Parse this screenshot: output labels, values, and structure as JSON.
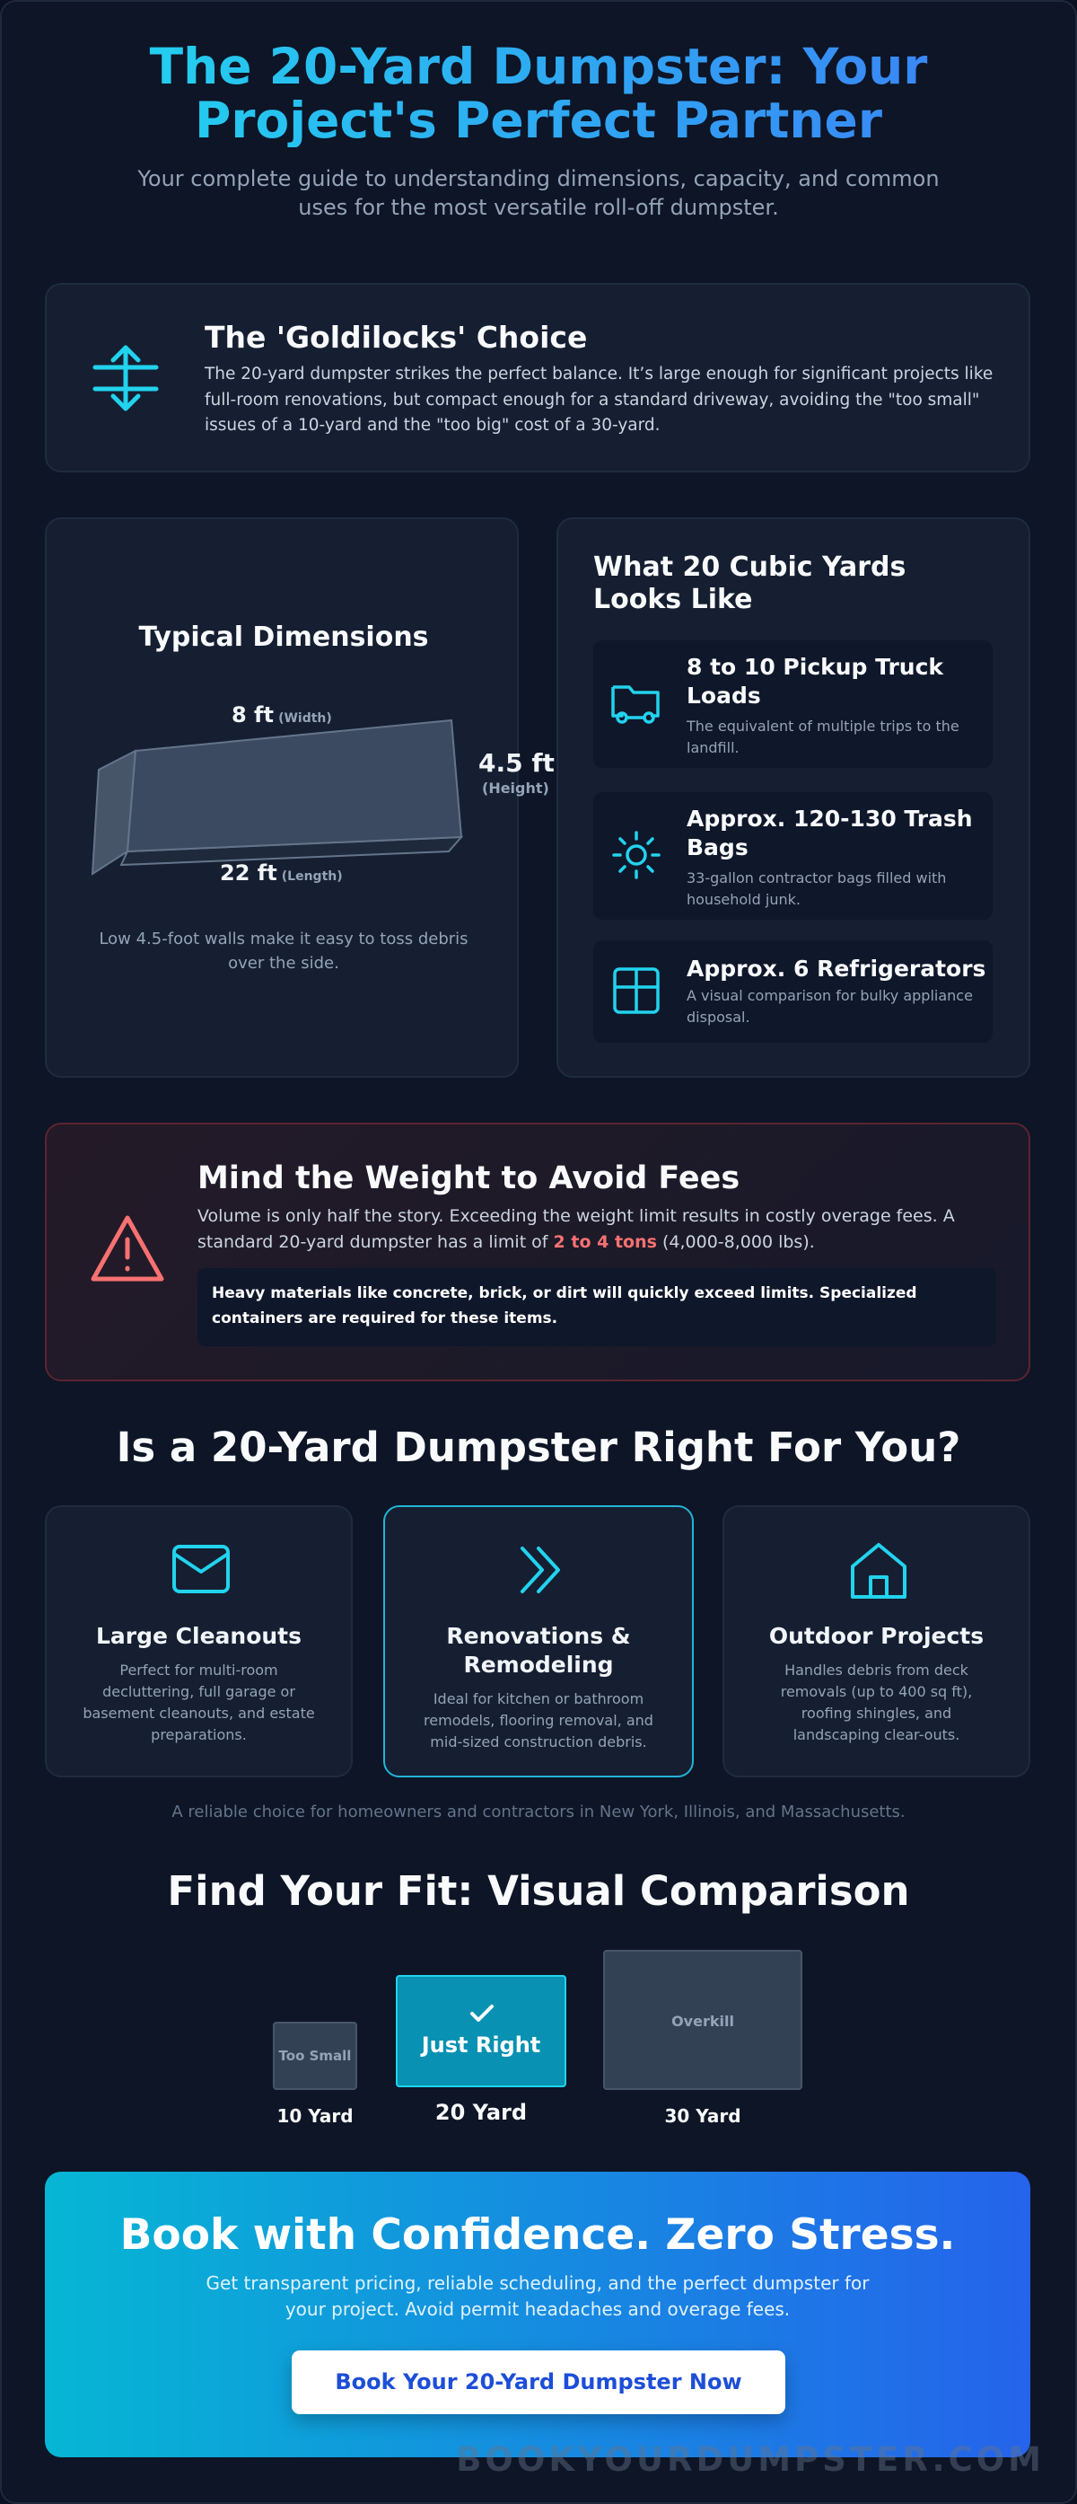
{
  "header": {
    "title": "The 20-Yard Dumpster: Your Project's Perfect Partner",
    "subtitle": "Your complete guide to understanding dimensions, capacity, and common uses for the most versatile roll-off dumpster."
  },
  "goldilocks": {
    "title": "The 'Goldilocks' Choice",
    "text": "The 20-yard dumpster strikes the perfect balance. It’s large enough for significant projects like full-room renovations, but compact enough for a standard driveway, avoiding the \"too small\" issues of a 10-yard and the \"too big\" cost of a 30-yard."
  },
  "dimensions": {
    "title": "Typical Dimensions",
    "width": {
      "value": "8 ft",
      "label": "(Width)"
    },
    "height": {
      "value": "4.5 ft",
      "label": "(Height)"
    },
    "length": {
      "value": "22 ft",
      "label": "(Length)"
    },
    "note": "Low 4.5-foot walls make it easy to toss debris over the side."
  },
  "capacity": {
    "title": "What 20 Cubic Yards Looks Like",
    "items": [
      {
        "title": "8 to 10 Pickup Truck Loads",
        "text": "The equivalent of multiple trips to the landfill."
      },
      {
        "title": "Approx. 120-130 Trash Bags",
        "text": "33-gallon contractor bags filled with household junk."
      },
      {
        "title": "Approx. 6 Refrigerators",
        "text": "A visual comparison for bulky appliance disposal."
      }
    ]
  },
  "weight": {
    "title": "Mind the Weight to Avoid Fees",
    "text_before": "Volume is only half the story. Exceeding the weight limit results in costly overage fees. A standard 20-yard dumpster has a limit of ",
    "highlight": "2 to 4 tons",
    "text_after": " (4,000-8,000 lbs).",
    "note": "Heavy materials like concrete, brick, or dirt will quickly exceed limits. Specialized containers are required for these items."
  },
  "fit": {
    "title": "Is a 20-Yard Dumpster Right For You?",
    "cards": [
      {
        "title": "Large Cleanouts",
        "text": "Perfect for multi-room decluttering, full garage or basement cleanouts, and estate preparations."
      },
      {
        "title": "Renovations & Remodeling",
        "text": "Ideal for kitchen or bathroom remodels, flooring removal, and mid-sized construction debris."
      },
      {
        "title": "Outdoor Projects",
        "text": "Handles debris from deck removals (up to 400 sq ft), roofing shingles, and landscaping clear-outs."
      }
    ],
    "footnote": "A reliable choice for homeowners and contractors in New York, Illinois, and Massachusetts."
  },
  "comparison": {
    "title": "Find Your Fit: Visual Comparison",
    "boxes": [
      {
        "inner": "Too Small",
        "label": "10 Yard"
      },
      {
        "inner": "Just Right",
        "label": "20 Yard"
      },
      {
        "inner": "Overkill",
        "label": "30 Yard"
      }
    ]
  },
  "cta": {
    "title": "Book with Confidence. Zero Stress.",
    "text": "Get transparent pricing, reliable scheduling, and the perfect dumpster for your project. Avoid permit headaches and overage fees.",
    "button": "Book Your 20-Yard Dumpster Now"
  },
  "watermark": "BOOKYOURDUMPSTER.COM"
}
